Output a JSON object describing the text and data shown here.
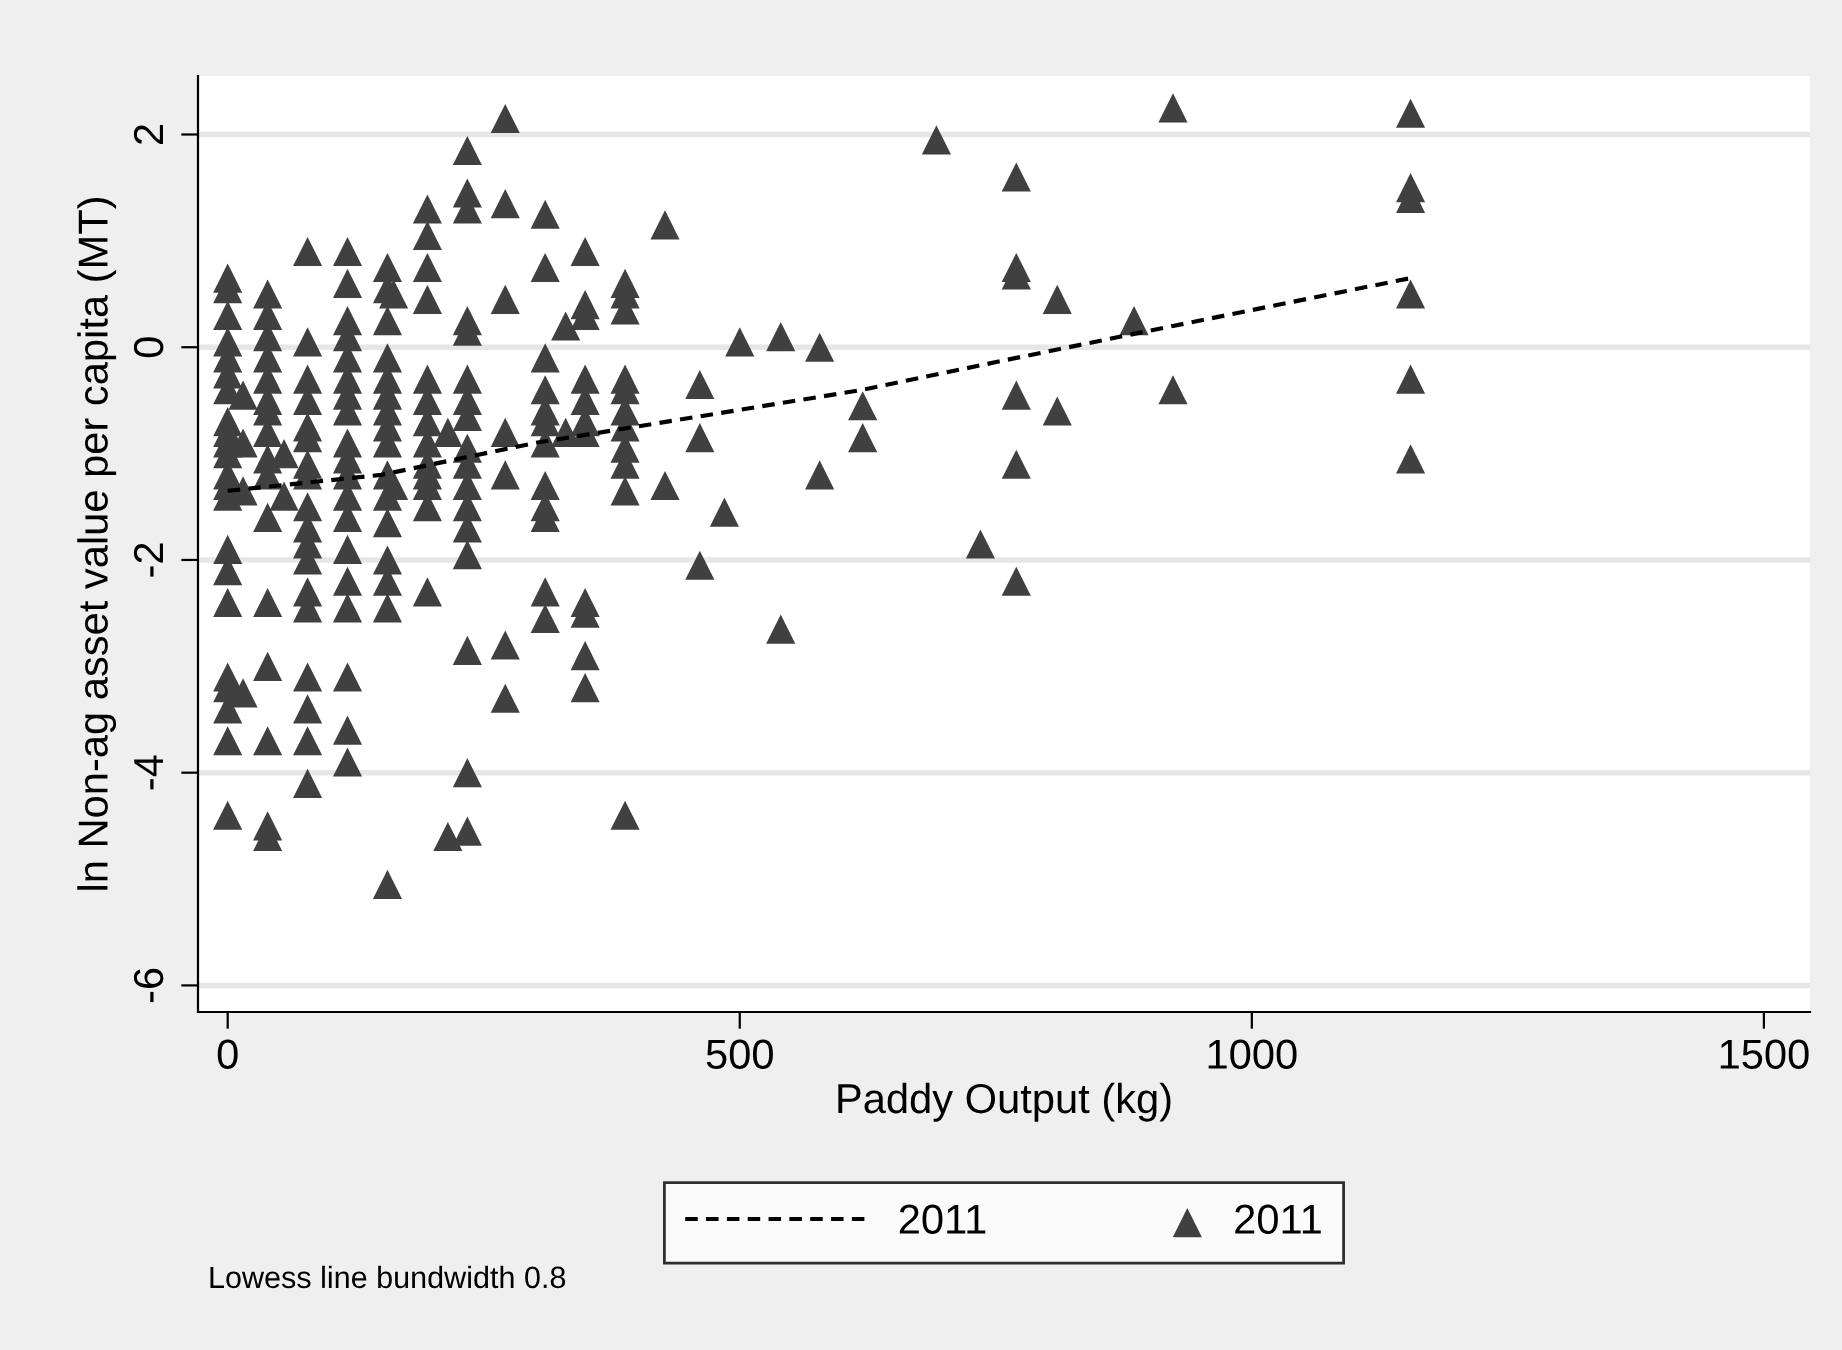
{
  "chart_data": {
    "type": "scatter",
    "xlabel": "Paddy Output (kg)",
    "ylabel": "ln Non-ag asset value per capita (MT)",
    "xlim": [
      -29,
      1545
    ],
    "ylim": [
      -6.25,
      2.55
    ],
    "xticks": [
      0,
      500,
      1000,
      1500
    ],
    "yticks": [
      -6,
      -4,
      -2,
      0,
      2
    ],
    "grid": "y",
    "legend": "bottom",
    "annotations": [
      "Lowess line bundwidth 0.8"
    ],
    "series": [
      {
        "name": "2011",
        "type": "line",
        "line_style": "dashed",
        "marker": "none",
        "color": "#000000",
        "x": [
          0,
          150,
          300,
          461,
          620,
          770,
          923,
          1155
        ],
        "values": [
          -1.35,
          -1.2,
          -0.9,
          -0.65,
          -0.4,
          -0.1,
          0.2,
          0.65
        ]
      },
      {
        "name": "2011",
        "marker": "triangle",
        "color": "#404040",
        "x": [
          0,
          0,
          0,
          0,
          0,
          0,
          0,
          0,
          0,
          0,
          0,
          0,
          0,
          0,
          0,
          0,
          0,
          0,
          0,
          0,
          0,
          0,
          15,
          15,
          15,
          15,
          39,
          39,
          39,
          39,
          39,
          39,
          39,
          39,
          39,
          39,
          39,
          39,
          39,
          39,
          39,
          39,
          55,
          55,
          78,
          78,
          78,
          78,
          78,
          78,
          78,
          78,
          78,
          78,
          78,
          78,
          78,
          78,
          78,
          78,
          78,
          78,
          117,
          117,
          117,
          117,
          117,
          117,
          117,
          117,
          117,
          117,
          117,
          117,
          117,
          117,
          117,
          117,
          117,
          117,
          117,
          156,
          156,
          156,
          156,
          156,
          156,
          156,
          156,
          156,
          156,
          156,
          156,
          156,
          156,
          156,
          156,
          162,
          162,
          195,
          195,
          195,
          195,
          195,
          195,
          195,
          195,
          195,
          195,
          195,
          195,
          195,
          215,
          215,
          234,
          234,
          234,
          234,
          234,
          234,
          234,
          234,
          234,
          234,
          234,
          234,
          234,
          234,
          234,
          234,
          234,
          271,
          271,
          271,
          271,
          271,
          271,
          271,
          310,
          310,
          310,
          310,
          310,
          310,
          310,
          310,
          310,
          310,
          310,
          310,
          330,
          330,
          349,
          349,
          349,
          349,
          349,
          349,
          349,
          349,
          349,
          349,
          349,
          388,
          388,
          388,
          388,
          388,
          388,
          388,
          388,
          388,
          388,
          388,
          427,
          427,
          461,
          461,
          461,
          485,
          500,
          540,
          540,
          578,
          578,
          620,
          620,
          692,
          735,
          770,
          770,
          770,
          770,
          770,
          770,
          810,
          810,
          885,
          923,
          923,
          1155,
          1155,
          1155,
          1155,
          1155,
          1155
        ],
        "values": [
          0.65,
          0.55,
          0.3,
          0.05,
          -0.1,
          -0.25,
          -0.4,
          -0.7,
          -0.8,
          -0.9,
          -1.0,
          -1.2,
          -1.3,
          -1.4,
          -1.9,
          -2.1,
          -2.4,
          -3.1,
          -3.2,
          -3.4,
          -3.7,
          -4.4,
          -0.45,
          -0.9,
          -1.35,
          -3.25,
          0.5,
          0.3,
          0.1,
          -0.1,
          -0.3,
          -0.5,
          -0.6,
          -0.8,
          -1.05,
          -1.2,
          -1.6,
          -2.4,
          -3.0,
          -3.7,
          -4.5,
          -4.6,
          -1.0,
          -1.4,
          0.9,
          0.05,
          -0.3,
          -0.5,
          -0.75,
          -0.85,
          -1.1,
          -1.2,
          -1.5,
          -1.7,
          -1.85,
          -2.0,
          -2.3,
          -2.45,
          -3.1,
          -3.4,
          -3.7,
          -4.1,
          0.9,
          0.6,
          0.25,
          0.1,
          -0.1,
          -0.3,
          -0.45,
          -0.6,
          -0.9,
          -1.05,
          -1.2,
          -1.4,
          -1.6,
          -1.9,
          -2.2,
          -2.45,
          -3.1,
          -3.6,
          -3.9,
          0.75,
          0.55,
          0.25,
          -0.1,
          -0.3,
          -0.45,
          -0.6,
          -0.75,
          -0.9,
          -1.2,
          -1.4,
          -1.65,
          -2.0,
          -2.2,
          -2.45,
          -5.05,
          0.5,
          -1.3,
          1.3,
          1.05,
          0.75,
          0.45,
          -0.3,
          -0.5,
          -0.7,
          -0.9,
          -1.1,
          -1.2,
          -1.3,
          -1.5,
          -2.3,
          -0.8,
          -4.6,
          1.85,
          1.45,
          1.3,
          0.25,
          0.15,
          -0.3,
          -0.5,
          -0.65,
          -0.95,
          -1.1,
          -1.3,
          -1.5,
          -1.7,
          -1.95,
          -2.85,
          -4.0,
          -4.55,
          2.15,
          1.35,
          0.45,
          -0.8,
          -1.2,
          -2.8,
          -3.3,
          1.25,
          0.75,
          -0.1,
          -0.4,
          -0.6,
          -0.7,
          -0.9,
          -1.3,
          -1.5,
          -1.6,
          -2.3,
          -2.55,
          0.2,
          -0.8,
          0.9,
          0.4,
          0.3,
          -0.3,
          -0.5,
          -0.7,
          -0.8,
          -2.4,
          -2.5,
          -2.9,
          -3.2,
          0.6,
          0.5,
          0.35,
          -0.3,
          -0.4,
          -0.6,
          -0.75,
          -0.95,
          -1.1,
          -1.35,
          -4.4,
          1.15,
          -1.3,
          -0.35,
          -0.85,
          -2.05,
          -1.55,
          0.05,
          0.1,
          -2.65,
          0.0,
          -1.2,
          -0.55,
          -0.85,
          1.95,
          -1.85,
          1.6,
          0.75,
          0.68,
          -0.45,
          -1.1,
          -2.2,
          0.45,
          -0.6,
          0.25,
          2.25,
          -0.4,
          2.2,
          1.5,
          1.4,
          0.5,
          -0.3,
          -1.05
        ]
      }
    ]
  }
}
